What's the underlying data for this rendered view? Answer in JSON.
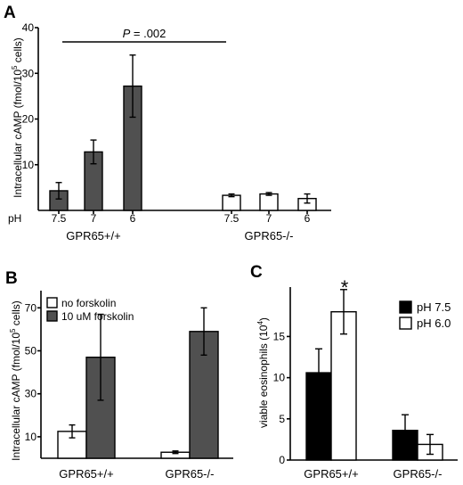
{
  "panels": {
    "A": {
      "letter": "A",
      "significance_prefix": "P",
      "significance_value": " = .002",
      "ph_label": "pH",
      "group_labels": [
        "GPR65+/+",
        "GPR65-/-"
      ]
    },
    "B": {
      "letter": "B"
    },
    "C": {
      "letter": "C",
      "asterisk": "*"
    }
  },
  "chart_data": [
    {
      "panel": "A",
      "type": "bar",
      "ylabel_main": "Intracellular cAMP (fmol/10",
      "ylabel_sup": "5",
      "ylabel_tail": " cells)",
      "ylim": [
        0,
        40
      ],
      "yticks": [
        10,
        20,
        30,
        40
      ],
      "groups": [
        {
          "name": "GPR65+/+",
          "color": "#505050",
          "categories": [
            "7.5",
            "7",
            "6"
          ],
          "values": [
            4.3,
            12.8,
            27.2
          ],
          "errors": [
            1.8,
            2.6,
            6.8
          ]
        },
        {
          "name": "GPR65-/-",
          "color": "#ffffff",
          "categories": [
            "7.5",
            "7",
            "6"
          ],
          "values": [
            3.3,
            3.6,
            2.6
          ],
          "errors": [
            0.3,
            0.3,
            1.0
          ]
        }
      ],
      "grid": false
    },
    {
      "panel": "B",
      "type": "bar",
      "ylabel_main": "Intracellular cAMP (fmol/10",
      "ylabel_sup": "5",
      "ylabel_tail": " cells)",
      "ylim": [
        0,
        78
      ],
      "yticks": [
        10,
        30,
        50,
        70
      ],
      "categories": [
        "GPR65+/+",
        "GPR65-/-"
      ],
      "series": [
        {
          "name": "no forskolin",
          "color": "#ffffff",
          "values": [
            12.5,
            2.8
          ],
          "errors": [
            3.0,
            0.6
          ]
        },
        {
          "name": "10 uM forskolin",
          "color": "#505050",
          "values": [
            47.0,
            59.0
          ],
          "errors": [
            20.0,
            11.0
          ]
        }
      ],
      "legend": "top-left",
      "grid": false
    },
    {
      "panel": "C",
      "type": "bar",
      "ylabel_main": "viable eosinophils (10",
      "ylabel_sup": "4",
      "ylabel_tail": ")",
      "ylim": [
        0,
        21
      ],
      "yticks": [
        0,
        5,
        10,
        15
      ],
      "categories": [
        "GPR65+/+",
        "GPR65-/-"
      ],
      "series": [
        {
          "name": "pH 7.5",
          "color": "#000000",
          "values": [
            10.6,
            3.6
          ],
          "errors": [
            2.9,
            1.9
          ]
        },
        {
          "name": "pH 6.0",
          "color": "#ffffff",
          "values": [
            18.0,
            1.9
          ],
          "errors": [
            2.7,
            1.2
          ]
        }
      ],
      "legend": "top-right",
      "grid": false
    }
  ]
}
